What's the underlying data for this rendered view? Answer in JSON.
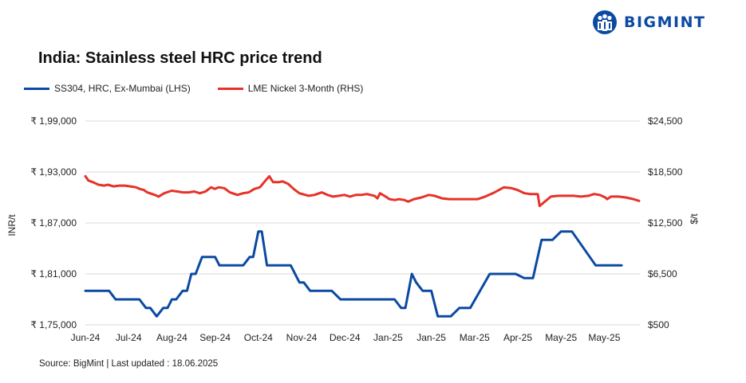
{
  "brand": {
    "name": "BIGMINT",
    "color": "#0b4aa2"
  },
  "chart_data": {
    "type": "line",
    "title": "India: Stainless steel HRC price trend",
    "source": "Source: BigMint | Last updated : 18.06.2025",
    "xlabels": [
      "Jun-24",
      "Jul-24",
      "Aug-24",
      "Sep-24",
      "Oct-24",
      "Nov-24",
      "Dec-24",
      "Jan-25",
      "Jan-25",
      "Mar-25",
      "Apr-25",
      "May-25",
      "May-25"
    ],
    "ylabel_left": "INR/t",
    "ylabel_right": "$/t",
    "left_axis": {
      "min": 175000,
      "max": 199000,
      "ticks": [
        175000,
        181000,
        187000,
        193000,
        199000
      ],
      "tick_labels": [
        "₹ 1,75,000",
        "₹ 1,81,000",
        "₹ 1,87,000",
        "₹ 1,93,000",
        "₹ 1,99,000"
      ]
    },
    "right_axis": {
      "min": 500,
      "max": 24500,
      "ticks": [
        500,
        6500,
        12500,
        18500,
        24500
      ],
      "tick_labels": [
        "$500",
        "$6,500",
        "$12,500",
        "$18,500",
        "$24,500"
      ]
    },
    "series": [
      {
        "name": "SS304, HRC, Ex-Mumbai (LHS)",
        "axis": "left",
        "color": "#0b4aa2",
        "points": [
          [
            0,
            179000
          ],
          [
            0.55,
            179000
          ],
          [
            0.7,
            178000
          ],
          [
            1.25,
            178000
          ],
          [
            1.4,
            177000
          ],
          [
            1.5,
            177000
          ],
          [
            1.65,
            176000
          ],
          [
            1.8,
            177000
          ],
          [
            1.9,
            177000
          ],
          [
            2.0,
            178000
          ],
          [
            2.1,
            178000
          ],
          [
            2.25,
            179000
          ],
          [
            2.35,
            179000
          ],
          [
            2.45,
            181000
          ],
          [
            2.55,
            181000
          ],
          [
            2.7,
            183000
          ],
          [
            3.0,
            183000
          ],
          [
            3.1,
            182000
          ],
          [
            3.65,
            182000
          ],
          [
            3.8,
            183000
          ],
          [
            3.88,
            183000
          ],
          [
            4.0,
            186000
          ],
          [
            4.08,
            186000
          ],
          [
            4.2,
            182000
          ],
          [
            4.75,
            182000
          ],
          [
            4.95,
            180000
          ],
          [
            5.05,
            180000
          ],
          [
            5.2,
            179000
          ],
          [
            5.7,
            179000
          ],
          [
            5.9,
            178000
          ],
          [
            7.15,
            178000
          ],
          [
            7.3,
            177000
          ],
          [
            7.4,
            177000
          ],
          [
            7.55,
            181000
          ],
          [
            7.65,
            180000
          ],
          [
            7.8,
            179000
          ],
          [
            8.0,
            179000
          ],
          [
            8.15,
            176000
          ],
          [
            8.45,
            176000
          ],
          [
            8.65,
            177000
          ],
          [
            8.9,
            177000
          ],
          [
            9.35,
            181000
          ],
          [
            9.95,
            181000
          ],
          [
            10.15,
            180500
          ],
          [
            10.35,
            180500
          ],
          [
            10.55,
            185000
          ],
          [
            10.8,
            185000
          ],
          [
            11.0,
            186000
          ],
          [
            11.25,
            186000
          ],
          [
            11.8,
            182000
          ],
          [
            12.4,
            182000
          ]
        ]
      },
      {
        "name": "LME Nickel 3-Month (RHS)",
        "axis": "right",
        "color": "#e63228",
        "points": [
          [
            0,
            18000
          ],
          [
            0.08,
            17500
          ],
          [
            0.2,
            17300
          ],
          [
            0.35,
            17000
          ],
          [
            0.5,
            16900
          ],
          [
            0.6,
            17000
          ],
          [
            0.75,
            16800
          ],
          [
            0.9,
            16900
          ],
          [
            1.05,
            16900
          ],
          [
            1.2,
            16800
          ],
          [
            1.35,
            16700
          ],
          [
            1.45,
            16500
          ],
          [
            1.55,
            16400
          ],
          [
            1.65,
            16100
          ],
          [
            1.85,
            15800
          ],
          [
            1.95,
            15600
          ],
          [
            2.1,
            16000
          ],
          [
            2.3,
            16300
          ],
          [
            2.45,
            16200
          ],
          [
            2.6,
            16100
          ],
          [
            2.75,
            16100
          ],
          [
            2.9,
            16200
          ],
          [
            3.05,
            16000
          ],
          [
            3.2,
            16200
          ],
          [
            3.35,
            16700
          ],
          [
            3.45,
            16500
          ],
          [
            3.55,
            16700
          ],
          [
            3.7,
            16600
          ],
          [
            3.85,
            16100
          ],
          [
            4.05,
            15800
          ],
          [
            4.2,
            16000
          ],
          [
            4.35,
            16100
          ],
          [
            4.5,
            16500
          ],
          [
            4.65,
            16700
          ],
          [
            4.8,
            17500
          ],
          [
            4.9,
            18000
          ],
          [
            5.0,
            17300
          ],
          [
            5.15,
            17300
          ],
          [
            5.25,
            17400
          ],
          [
            5.4,
            17100
          ],
          [
            5.55,
            16500
          ],
          [
            5.7,
            16000
          ],
          [
            5.95,
            15700
          ],
          [
            6.1,
            15800
          ],
          [
            6.3,
            16100
          ],
          [
            6.45,
            15800
          ],
          [
            6.6,
            15600
          ],
          [
            6.75,
            15700
          ],
          [
            6.9,
            15800
          ],
          [
            7.05,
            15600
          ],
          [
            7.2,
            15800
          ],
          [
            7.35,
            15800
          ],
          [
            7.5,
            15900
          ],
          [
            7.7,
            15700
          ],
          [
            7.78,
            15400
          ],
          [
            7.85,
            16000
          ],
          [
            8.0,
            15600
          ],
          [
            8.1,
            15300
          ],
          [
            8.25,
            15200
          ],
          [
            8.35,
            15300
          ],
          [
            8.5,
            15200
          ],
          [
            8.6,
            15000
          ],
          [
            8.75,
            15300
          ],
          [
            8.95,
            15500
          ],
          [
            9.15,
            15800
          ],
          [
            9.3,
            15700
          ],
          [
            9.5,
            15400
          ],
          [
            9.7,
            15300
          ],
          [
            10.3,
            15300
          ],
          [
            10.45,
            15300
          ],
          [
            10.65,
            15600
          ],
          [
            10.9,
            16100
          ],
          [
            11.15,
            16700
          ],
          [
            11.35,
            16600
          ],
          [
            11.5,
            16400
          ],
          [
            11.7,
            16000
          ],
          [
            11.85,
            15900
          ],
          [
            12.05,
            15900
          ],
          [
            12.1,
            14500
          ],
          [
            12.4,
            15600
          ],
          [
            12.6,
            15700
          ],
          [
            12.8,
            15700
          ],
          [
            13.0,
            15700
          ],
          [
            13.2,
            15600
          ],
          [
            13.4,
            15700
          ],
          [
            13.55,
            15900
          ],
          [
            13.7,
            15800
          ],
          [
            13.85,
            15500
          ],
          [
            13.9,
            15300
          ],
          [
            14.0,
            15600
          ],
          [
            14.2,
            15600
          ],
          [
            14.4,
            15500
          ],
          [
            14.6,
            15300
          ],
          [
            14.75,
            15100
          ]
        ]
      }
    ],
    "grid": true,
    "legend_position": "top-left"
  }
}
